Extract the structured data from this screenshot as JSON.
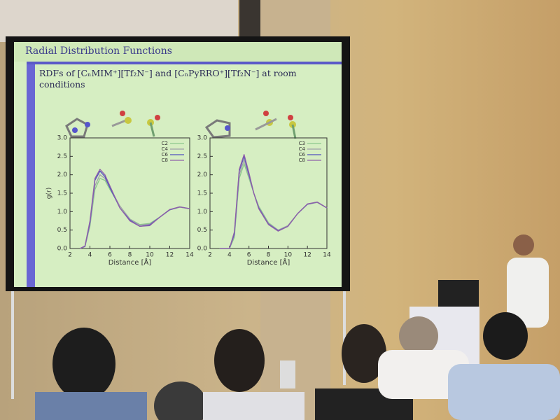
{
  "slide": {
    "title": "Radial Distribution Functions",
    "subtitle": "RDFs of [CₙMIM⁺][Tf₂N⁻] and [CₙPyRRO⁺][Tf₂N⁻] at room conditions"
  },
  "chart_data": [
    {
      "type": "line",
      "ylabel": "g(r)",
      "xlabel": "Distance [Å]",
      "xlim": [
        2,
        14
      ],
      "xticks": [
        2,
        4,
        6,
        8,
        10,
        12,
        14
      ],
      "ylim": [
        0,
        3
      ],
      "yticks": [
        {
          "value": 0,
          "label": "0.0"
        },
        0.5,
        {
          "value": 1,
          "label": "1.0"
        },
        1.5,
        {
          "value": 2,
          "label": "2.0"
        },
        2.5,
        {
          "value": 3,
          "label": "3.0"
        }
      ],
      "legend": "upper right",
      "x": [
        3,
        3.5,
        4,
        4.5,
        5,
        5.5,
        6,
        7,
        8,
        9,
        10,
        11,
        12,
        13,
        14
      ],
      "series": [
        {
          "name": "C2",
          "color": "#8cc88c",
          "values": [
            0,
            0.05,
            0.6,
            1.6,
            1.9,
            1.85,
            1.6,
            1.15,
            0.8,
            0.65,
            0.68,
            0.85,
            1.05,
            1.12,
            1.08
          ]
        },
        {
          "name": "C4",
          "color": "#a0a0a8",
          "values": [
            0,
            0.05,
            0.65,
            1.7,
            2.0,
            1.9,
            1.65,
            1.15,
            0.8,
            0.63,
            0.66,
            0.85,
            1.05,
            1.12,
            1.08
          ]
        },
        {
          "name": "C6",
          "color": "#5050c0",
          "values": [
            0,
            0.06,
            0.7,
            1.85,
            2.1,
            1.95,
            1.65,
            1.1,
            0.77,
            0.6,
            0.64,
            0.85,
            1.05,
            1.13,
            1.08
          ]
        },
        {
          "name": "C8",
          "color": "#9060a8",
          "values": [
            0,
            0.07,
            0.75,
            1.9,
            2.15,
            2.0,
            1.7,
            1.1,
            0.75,
            0.6,
            0.62,
            0.85,
            1.06,
            1.13,
            1.08
          ]
        }
      ]
    },
    {
      "type": "line",
      "xlabel": "Distance [Å]",
      "xlim": [
        2,
        14
      ],
      "xticks": [
        2,
        4,
        6,
        8,
        10,
        12,
        14
      ],
      "ylim": [
        0,
        3
      ],
      "yticks": [
        {
          "value": 0,
          "label": "0.0"
        },
        0.5,
        {
          "value": 1,
          "label": "1.0"
        },
        1.5,
        {
          "value": 2,
          "label": "2.0"
        },
        2.5,
        {
          "value": 3,
          "label": "3.0"
        }
      ],
      "legend": "upper right",
      "x": [
        3,
        4,
        4.5,
        5,
        5.5,
        6,
        6.5,
        7,
        8,
        9,
        10,
        11,
        12,
        13,
        14
      ],
      "series": [
        {
          "name": "C3",
          "color": "#8cc88c",
          "values": [
            0,
            0,
            0.3,
            1.9,
            2.3,
            1.9,
            1.5,
            1.15,
            0.7,
            0.5,
            0.62,
            0.95,
            1.2,
            1.25,
            1.1
          ]
        },
        {
          "name": "C4",
          "color": "#a0a0a8",
          "values": [
            0,
            0,
            0.35,
            2.0,
            2.4,
            1.95,
            1.5,
            1.12,
            0.68,
            0.5,
            0.62,
            0.95,
            1.2,
            1.25,
            1.1
          ]
        },
        {
          "name": "C6",
          "color": "#5050c0",
          "values": [
            0,
            0,
            0.4,
            2.1,
            2.5,
            2.0,
            1.5,
            1.1,
            0.66,
            0.48,
            0.6,
            0.95,
            1.2,
            1.26,
            1.1
          ]
        },
        {
          "name": "C8",
          "color": "#9060a8",
          "values": [
            0,
            0,
            0.45,
            2.15,
            2.55,
            2.05,
            1.5,
            1.08,
            0.65,
            0.47,
            0.6,
            0.95,
            1.21,
            1.26,
            1.1
          ]
        }
      ]
    }
  ]
}
